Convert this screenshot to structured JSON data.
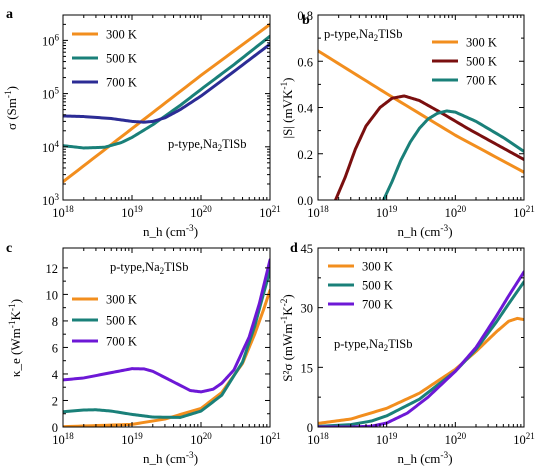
{
  "colors": {
    "300 K": "#f28e1e",
    "500 K": "#1a8079",
    "700 K": "#6d18d6",
    "700 K (a)": "#2c2c95",
    "500 K (b)": "#7a0f0f"
  },
  "chart_data": [
    {
      "panel": "a",
      "type": "line",
      "annotation": "p-type,Na2TlSb",
      "xlabel": "n_h (cm^-3)",
      "ylabel": "σ (Sm^-1)",
      "xscale": "log",
      "yscale": "log",
      "xlim": [
        1e+18,
        1e+21
      ],
      "ylim": [
        1000.0,
        3000000.0
      ],
      "xticks": [
        "10^18",
        "10^19",
        "10^20",
        "10^21"
      ],
      "yticks": [
        "10^3",
        "10^4",
        "10^5",
        "10^6"
      ],
      "legend": "top-left",
      "series": [
        {
          "name": "300 K",
          "color": "#f28e1e",
          "x": [
            1e+18,
            1e+19,
            1e+20,
            1e+21
          ],
          "y": [
            2200,
            22000,
            220000,
            2000000
          ]
        },
        {
          "name": "500 K",
          "color": "#1a8079",
          "x": [
            1e+18,
            2e+18,
            4e+18,
            7e+18,
            1e+19,
            2e+19,
            5e+19,
            1e+20,
            3e+20,
            1e+21
          ],
          "y": [
            10500,
            9500,
            9800,
            12000,
            15000,
            26000,
            60000,
            120000,
            350000,
            1200000
          ]
        },
        {
          "name": "700 K",
          "color": "#2c2c95",
          "x": [
            1e+18,
            2e+18,
            5e+18,
            1e+19,
            1.5e+19,
            2e+19,
            3e+19,
            5e+19,
            1e+20,
            3e+20,
            1e+21
          ],
          "y": [
            38000,
            37000,
            34000,
            30000,
            29000,
            30000,
            35000,
            50000,
            90000,
            260000,
            850000
          ]
        }
      ]
    },
    {
      "panel": "b",
      "type": "line",
      "annotation": "p-type,Na2TlSb",
      "xlabel": "n_h (cm^-3)",
      "ylabel": "|S| (mVK^-1)",
      "xscale": "log",
      "xlim": [
        1e+18,
        1e+21
      ],
      "ylim": [
        0,
        0.8
      ],
      "xticks": [
        "10^18",
        "10^19",
        "10^20",
        "10^21"
      ],
      "yticks": [
        "0.0",
        "0.2",
        "0.4",
        "0.6",
        "0.8"
      ],
      "legend": "top-right",
      "series": [
        {
          "name": "300 K",
          "color": "#f28e1e",
          "x": [
            1e+18,
            1e+19,
            1e+20,
            1e+21
          ],
          "y": [
            0.645,
            0.46,
            0.28,
            0.12
          ]
        },
        {
          "name": "500 K",
          "color": "#7a0f0f",
          "x": [
            1.8e+18,
            2.5e+18,
            3.5e+18,
            5e+18,
            8e+18,
            1.2e+19,
            1.8e+19,
            3e+19,
            6e+19,
            1.5e+20,
            4e+20,
            1e+21
          ],
          "y": [
            0.0,
            0.1,
            0.22,
            0.32,
            0.4,
            0.44,
            0.45,
            0.43,
            0.38,
            0.31,
            0.24,
            0.175
          ]
        },
        {
          "name": "700 K",
          "color": "#1a8079",
          "x": [
            9e+18,
            1.2e+19,
            1.6e+19,
            2.2e+19,
            3e+19,
            4e+19,
            5.5e+19,
            7.5e+19,
            1e+20,
            2e+20,
            5e+20,
            1e+21
          ],
          "y": [
            0.0,
            0.08,
            0.17,
            0.25,
            0.31,
            0.35,
            0.375,
            0.385,
            0.38,
            0.34,
            0.27,
            0.21
          ]
        }
      ]
    },
    {
      "panel": "c",
      "type": "line",
      "annotation": "p-type,Na2TlSb",
      "xlabel": "n_h (cm^-3)",
      "ylabel": "κ_e (Wm^-1K^-1)",
      "xscale": "log",
      "xlim": [
        1e+18,
        1e+21
      ],
      "ylim": [
        0,
        13.5
      ],
      "xticks": [
        "10^18",
        "10^19",
        "10^20",
        "10^21"
      ],
      "yticks": [
        "0",
        "2",
        "4",
        "6",
        "8",
        "10",
        "12"
      ],
      "legend": "center-left",
      "series": [
        {
          "name": "300 K",
          "color": "#f28e1e",
          "x": [
            1e+18,
            1e+19,
            3e+19,
            1e+20,
            2e+20,
            4e+20,
            6e+20,
            8e+20,
            1e+21
          ],
          "y": [
            0.02,
            0.2,
            0.6,
            1.4,
            2.6,
            4.8,
            7.0,
            8.8,
            10.3
          ]
        },
        {
          "name": "500 K",
          "color": "#1a8079",
          "x": [
            1e+18,
            2e+18,
            3e+18,
            5e+18,
            1e+19,
            2e+19,
            5e+19,
            1e+20,
            2e+20,
            4e+20,
            6e+20,
            8e+20,
            1e+21
          ],
          "y": [
            1.15,
            1.28,
            1.3,
            1.2,
            0.95,
            0.75,
            0.72,
            1.2,
            2.4,
            4.9,
            7.6,
            10.0,
            11.8
          ]
        },
        {
          "name": "700 K",
          "color": "#6d18d6",
          "x": [
            1e+18,
            2e+18,
            5e+18,
            1e+19,
            1.5e+19,
            2e+19,
            4e+19,
            7e+19,
            1e+20,
            1.5e+20,
            2e+20,
            3e+20,
            5e+20,
            7e+20,
            1e+21
          ],
          "y": [
            3.55,
            3.7,
            4.1,
            4.4,
            4.38,
            4.2,
            3.4,
            2.75,
            2.65,
            2.85,
            3.3,
            4.3,
            6.8,
            9.3,
            12.6
          ]
        }
      ]
    },
    {
      "panel": "d",
      "type": "line",
      "annotation": "p-type,Na2TlSb",
      "xlabel": "n_h (cm^-3)",
      "ylabel": "S²σ (mWm^-1K^-2)",
      "xscale": "log",
      "xlim": [
        1e+18,
        1e+21
      ],
      "ylim": [
        0,
        45
      ],
      "xticks": [
        "10^18",
        "10^19",
        "10^20",
        "10^21"
      ],
      "yticks": [
        "0",
        "15",
        "30",
        "45"
      ],
      "legend": "top-left",
      "series": [
        {
          "name": "300 K",
          "color": "#f28e1e",
          "x": [
            1e+18,
            3e+18,
            1e+19,
            3e+19,
            1e+20,
            2e+20,
            4e+20,
            6e+20,
            8e+20,
            1e+21
          ],
          "y": [
            0.9,
            2.0,
            4.7,
            8.5,
            14.5,
            19.0,
            24.0,
            26.6,
            27.3,
            27.0
          ]
        },
        {
          "name": "500 K",
          "color": "#1a8079",
          "x": [
            1e+18,
            3e+18,
            6e+18,
            1e+19,
            3e+19,
            1e+20,
            2e+20,
            4e+20,
            6e+20,
            1e+21
          ],
          "y": [
            0.15,
            0.6,
            1.5,
            2.8,
            7.0,
            14.0,
            19.5,
            26.5,
            31.0,
            36.5
          ]
        },
        {
          "name": "700 K",
          "color": "#6d18d6",
          "x": [
            1e+18,
            3e+18,
            6e+18,
            1e+19,
            2e+19,
            4e+19,
            1e+20,
            2e+20,
            4e+20,
            6e+20,
            1e+21
          ],
          "y": [
            0.0,
            0.0,
            0.2,
            1.0,
            3.5,
            7.5,
            14.0,
            20.0,
            28.0,
            33.0,
            39.0
          ]
        }
      ]
    }
  ]
}
